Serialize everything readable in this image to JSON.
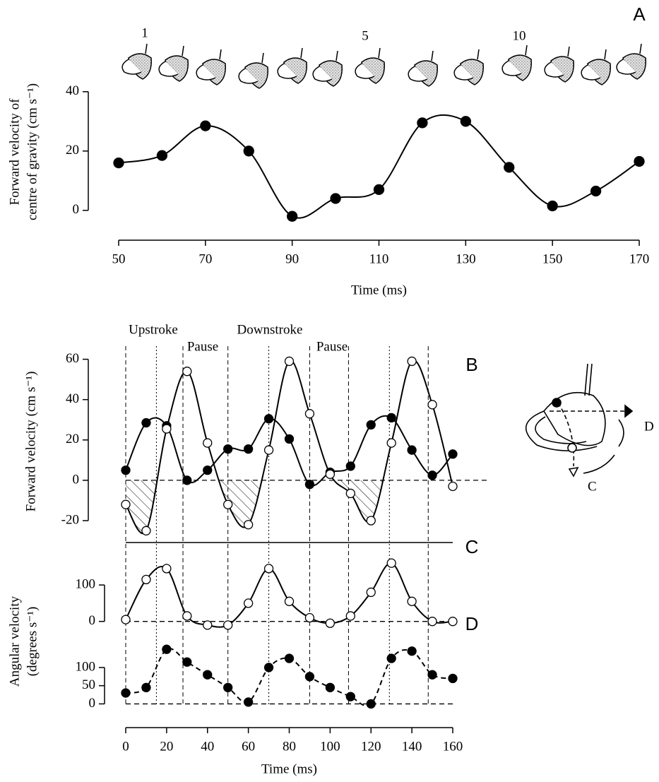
{
  "chart_data": [
    {
      "type": "line",
      "panel": "A",
      "frame_labels": [
        "1",
        "5",
        "10"
      ],
      "xlabel": "Time (ms)",
      "ylabel": [
        "Forward velocity of",
        "centre of gravity (cm s⁻¹)"
      ],
      "x": [
        50,
        60,
        70,
        80,
        90,
        100,
        110,
        120,
        130,
        140,
        150,
        160,
        170
      ],
      "series": [
        {
          "color": "#000000",
          "marker": "filled",
          "line_style": "solid",
          "values": [
            16,
            18.5,
            28.5,
            20,
            -2,
            4,
            7,
            29.5,
            30,
            14.5,
            1.5,
            6.5,
            16.5
          ]
        }
      ],
      "xlim": [
        50,
        170
      ],
      "xticks": [
        50,
        70,
        90,
        110,
        130,
        150,
        170
      ],
      "ylim": [
        -6,
        44
      ],
      "yticks": [
        0,
        20,
        40
      ]
    },
    {
      "type": "line",
      "panel": "B",
      "ylabel": [
        "Forward velocity (cm s⁻¹)"
      ],
      "annotations": [
        "Upstroke",
        "Pause",
        "Downstroke",
        "Pause"
      ],
      "phase_lines": [
        {
          "x": 0,
          "style": "dashed"
        },
        {
          "x": 15,
          "style": "dotted"
        },
        {
          "x": 28,
          "style": "dashed"
        },
        {
          "x": 50,
          "style": "dashed"
        },
        {
          "x": 70,
          "style": "dotted"
        },
        {
          "x": 90,
          "style": "dashed"
        },
        {
          "x": 109,
          "style": "dashed"
        },
        {
          "x": 129,
          "style": "dotted"
        },
        {
          "x": 148,
          "style": "dashed"
        }
      ],
      "x": [
        0,
        10,
        20,
        30,
        40,
        50,
        60,
        70,
        80,
        90,
        100,
        110,
        120,
        130,
        140,
        150,
        160
      ],
      "series": [
        {
          "color": "#000000",
          "marker": "filled",
          "line_style": "solid",
          "values": [
            5,
            28.5,
            27,
            0,
            5,
            15.5,
            15.5,
            30.5,
            20.5,
            -2,
            4,
            7,
            27.5,
            31,
            15,
            2.5,
            13
          ]
        },
        {
          "color": "#000000",
          "marker": "open",
          "line_style": "solid",
          "hatch_below_zero": true,
          "values": [
            -12,
            -25,
            25.5,
            54,
            18.5,
            -12,
            -22,
            15,
            59,
            33,
            3,
            -6.5,
            -20,
            18.5,
            59,
            37.5,
            -3
          ]
        }
      ],
      "xlim": [
        0,
        160
      ],
      "ylim": [
        -27,
        63
      ],
      "yticks": [
        -20,
        0,
        20,
        40,
        60
      ],
      "zero_line": true
    },
    {
      "type": "line",
      "panel": "C",
      "ylabel": [
        "Angular velocity",
        "(degrees s⁻¹)"
      ],
      "x": [
        0,
        10,
        20,
        30,
        40,
        50,
        60,
        70,
        80,
        90,
        100,
        110,
        120,
        130,
        140,
        150,
        160
      ],
      "series": [
        {
          "color": "#000000",
          "marker": "open",
          "line_style": "solid",
          "values": [
            5,
            115,
            145,
            15,
            -10,
            -10,
            50,
            145,
            55,
            10,
            -5,
            15,
            80,
            160,
            55,
            0,
            0
          ]
        }
      ],
      "xlim": [
        0,
        160
      ],
      "ylim": [
        -20,
        170
      ],
      "yticks": [
        0,
        100
      ],
      "zero_line": true
    },
    {
      "type": "line",
      "panel": "D",
      "xlabel": "Time (ms)",
      "x": [
        0,
        10,
        20,
        30,
        40,
        50,
        60,
        70,
        80,
        90,
        100,
        110,
        120,
        130,
        140,
        150,
        160
      ],
      "series": [
        {
          "color": "#000000",
          "marker": "filled",
          "line_style": "dashed",
          "values": [
            30,
            45,
            150,
            115,
            80,
            45,
            5,
            100,
            125,
            75,
            45,
            20,
            0,
            125,
            145,
            80,
            70
          ]
        }
      ],
      "xlim": [
        0,
        160
      ],
      "xticks": [
        0,
        20,
        40,
        60,
        80,
        100,
        120,
        140,
        160
      ],
      "ylim": [
        -5,
        160
      ],
      "yticks": [
        0,
        50,
        100
      ],
      "zero_line": true
    }
  ],
  "inset": {
    "labels": [
      "D",
      "C"
    ]
  }
}
